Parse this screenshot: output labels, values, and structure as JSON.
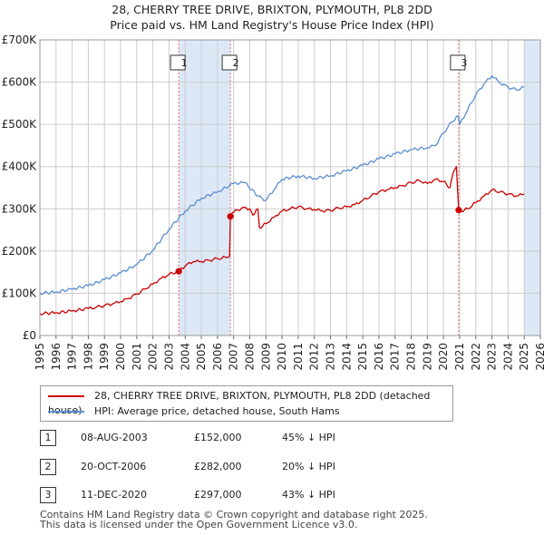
{
  "title_line1": "28, CHERRY TREE DRIVE, BRIXTON, PLYMOUTH, PL8 2DD",
  "title_line2": "Price paid vs. HM Land Registry's House Price Index (HPI)",
  "colors": {
    "property": "#cc0000",
    "hpi": "#5b8fd0",
    "shade": "#dde8f7",
    "marker_line": "#e07070",
    "grid": "#cccccc"
  },
  "chart_data": {
    "type": "line",
    "title": "28, CHERRY TREE DRIVE, BRIXTON, PLYMOUTH, PL8 2DD - Price paid vs. HM Land Registry's House Price Index (HPI)",
    "xlabel": "",
    "ylabel": "",
    "xlim": [
      1995,
      2026
    ],
    "ylim": [
      0,
      700000
    ],
    "y_ticks": [
      {
        "value": 0,
        "label": "£0"
      },
      {
        "value": 100000,
        "label": "£100K"
      },
      {
        "value": 200000,
        "label": "£200K"
      },
      {
        "value": 300000,
        "label": "£300K"
      },
      {
        "value": 400000,
        "label": "£400K"
      },
      {
        "value": 500000,
        "label": "£500K"
      },
      {
        "value": 600000,
        "label": "£600K"
      },
      {
        "value": 700000,
        "label": "£700K"
      }
    ],
    "x_ticks": [
      "1995",
      "1996",
      "1997",
      "1998",
      "1999",
      "2000",
      "2001",
      "2002",
      "2003",
      "2004",
      "2005",
      "2006",
      "2007",
      "2008",
      "2009",
      "2010",
      "2011",
      "2012",
      "2013",
      "2014",
      "2015",
      "2016",
      "2017",
      "2018",
      "2019",
      "2020",
      "2021",
      "2022",
      "2023",
      "2024",
      "2025",
      "2026"
    ],
    "shaded_regions": [
      [
        2003.6,
        2006.8
      ],
      [
        2025.0,
        2026.0
      ]
    ],
    "series": [
      {
        "name": "28, CHERRY TREE DRIVE, BRIXTON, PLYMOUTH, PL8 2DD (detached house)",
        "x": [
          1995.0,
          1996.0,
          1997.0,
          1998.0,
          1998.5,
          1999.0,
          1999.5,
          2000.0,
          2000.5,
          2001.0,
          2001.5,
          2002.0,
          2002.5,
          2003.0,
          2003.6,
          2004.0,
          2004.5,
          2005.0,
          2005.5,
          2006.0,
          2006.5,
          2006.75,
          2006.8,
          2007.0,
          2007.5,
          2008.0,
          2008.2,
          2008.5,
          2008.6,
          2009.0,
          2009.5,
          2010.0,
          2010.5,
          2011.0,
          2011.5,
          2012.0,
          2012.5,
          2013.0,
          2013.5,
          2014.0,
          2014.5,
          2015.0,
          2015.5,
          2016.0,
          2016.5,
          2017.0,
          2017.5,
          2018.0,
          2018.5,
          2019.0,
          2019.5,
          2020.0,
          2020.4,
          2020.6,
          2020.8,
          2020.94,
          2021.1,
          2021.5,
          2022.0,
          2022.5,
          2023.0,
          2023.5,
          2024.0,
          2024.5,
          2025.0
        ],
        "values": [
          52000,
          54000,
          58000,
          64000,
          67000,
          71000,
          75000,
          80000,
          88000,
          98000,
          110000,
          122000,
          135000,
          145000,
          152000,
          165000,
          175000,
          175000,
          178000,
          182000,
          185000,
          187000,
          282000,
          292000,
          302000,
          300000,
          285000,
          300000,
          255000,
          265000,
          280000,
          295000,
          300000,
          305000,
          300000,
          298000,
          295000,
          296000,
          302000,
          305000,
          310000,
          320000,
          330000,
          340000,
          345000,
          350000,
          355000,
          362000,
          367000,
          360000,
          370000,
          365000,
          350000,
          385000,
          400000,
          297000,
          295000,
          300000,
          315000,
          330000,
          345000,
          340000,
          335000,
          330000,
          335000
        ]
      },
      {
        "name": "HPI: Average price, detached house, South Hams",
        "x": [
          1995.0,
          1996.0,
          1997.0,
          1998.0,
          1999.0,
          2000.0,
          2001.0,
          2002.0,
          2003.0,
          2004.0,
          2005.0,
          2006.0,
          2007.0,
          2007.7,
          2008.5,
          2009.0,
          2009.5,
          2010.0,
          2011.0,
          2012.0,
          2013.0,
          2014.0,
          2015.0,
          2016.0,
          2017.0,
          2018.0,
          2019.0,
          2019.5,
          2020.0,
          2020.5,
          2020.9,
          2021.0,
          2021.5,
          2022.0,
          2022.5,
          2023.0,
          2023.5,
          2024.0,
          2024.5,
          2025.0
        ],
        "values": [
          100000,
          103000,
          110000,
          118000,
          132000,
          148000,
          168000,
          202000,
          252000,
          295000,
          325000,
          340000,
          360000,
          362000,
          330000,
          320000,
          345000,
          370000,
          378000,
          372000,
          378000,
          390000,
          403000,
          418000,
          430000,
          440000,
          445000,
          450000,
          480000,
          505000,
          520000,
          500000,
          535000,
          570000,
          595000,
          615000,
          598000,
          588000,
          582000,
          588000
        ]
      }
    ],
    "transactions": [
      {
        "id": "1",
        "x": 2003.6,
        "value": 152000
      },
      {
        "id": "2",
        "x": 2006.8,
        "value": 282000
      },
      {
        "id": "3",
        "x": 2020.94,
        "value": 297000
      }
    ]
  },
  "legend": {
    "property_label": "28, CHERRY TREE DRIVE, BRIXTON, PLYMOUTH, PL8 2DD (detached house)",
    "hpi_label": "HPI: Average price, detached house, South Hams"
  },
  "transactions_table": [
    {
      "id": "1",
      "date": "08-AUG-2003",
      "price": "£152,000",
      "hpi": "45% ↓ HPI"
    },
    {
      "id": "2",
      "date": "20-OCT-2006",
      "price": "£282,000",
      "hpi": "20% ↓ HPI"
    },
    {
      "id": "3",
      "date": "11-DEC-2020",
      "price": "£297,000",
      "hpi": "43% ↓ HPI"
    }
  ],
  "footer_line1": "Contains HM Land Registry data © Crown copyright and database right 2025.",
  "footer_line2": "This data is licensed under the Open Government Licence v3.0."
}
